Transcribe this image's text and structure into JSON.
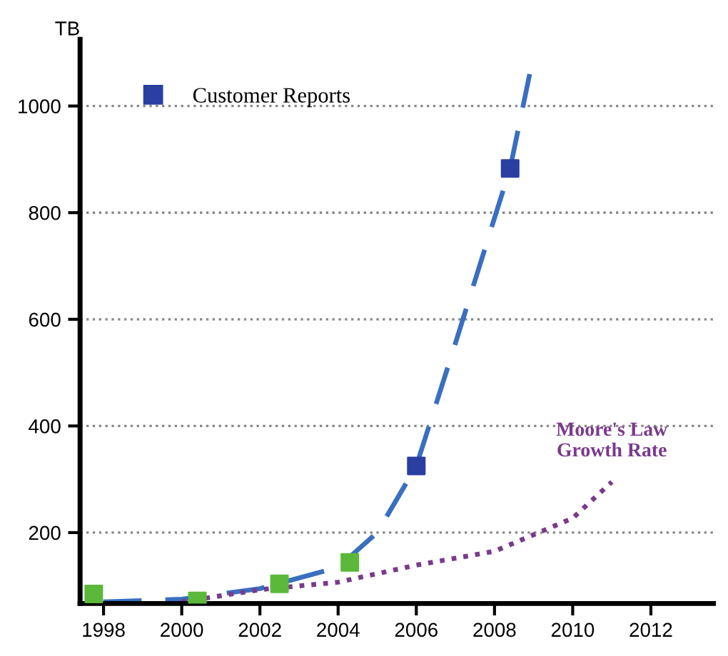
{
  "chart_data": {
    "type": "line",
    "ylabel": "TB",
    "xlim": [
      1997.4,
      2013.6
    ],
    "ylim": [
      67,
      1125
    ],
    "xticks": [
      1998,
      2000,
      2002,
      2004,
      2006,
      2008,
      2010,
      2012
    ],
    "yticks": [
      200,
      400,
      600,
      800,
      1000
    ],
    "grid": "y",
    "legend": "top left",
    "series": [
      {
        "color": "#3a6fc0",
        "line_style": "dashed",
        "marker": "none",
        "x": [
          1998,
          2000,
          2002,
          2004,
          2005,
          2006,
          2007,
          2008,
          2008.4,
          2008.9
        ],
        "values": [
          70,
          75,
          95,
          135,
          200,
          325,
          555,
          790,
          883,
          1060
        ]
      },
      {
        "name": "Moore's Law\nGrowth Rate",
        "color": "#7a3a8c",
        "line_style": "dotted",
        "marker": "none",
        "x": [
          2000,
          2002,
          2004,
          2006,
          2008,
          2010,
          2011
        ],
        "values": [
          70,
          93,
          107,
          139,
          165,
          227,
          295
        ]
      },
      {
        "type": "scatter",
        "color": "#5cb83a",
        "marker": "square",
        "x": [
          1997.75,
          2000.4,
          2002.5,
          2004.3
        ],
        "values": [
          85,
          72,
          104,
          144
        ]
      },
      {
        "type": "scatter",
        "name": "Customer Reports",
        "color": "#2a3fa0",
        "marker": "square",
        "x": [
          2006.0,
          2008.4
        ],
        "values": [
          325,
          883
        ]
      }
    ]
  }
}
